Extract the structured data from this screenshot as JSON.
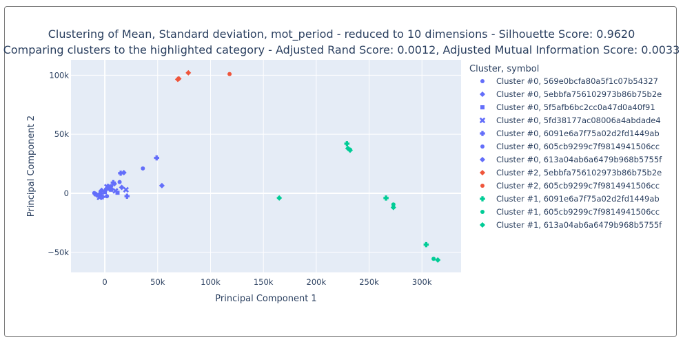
{
  "chart_data": {
    "type": "scatter",
    "title": "Clustering of Mean, Standard deviation, mot_period - reduced to 10 dimensions - Silhouette Score: 0.9620",
    "subtitle": "Comparing clusters to the highlighted category - Adjusted Rand Score: 0.0012, Adjusted Mutual Information Score: 0.0033",
    "xlabel": "Principal Component 1",
    "ylabel": "Principal Component 2",
    "xlim": [
      -32000,
      337000
    ],
    "ylim": [
      -67000,
      113000
    ],
    "x_ticks": [
      0,
      50000,
      100000,
      150000,
      200000,
      250000,
      300000
    ],
    "x_tick_labels": [
      "0",
      "50k",
      "100k",
      "150k",
      "200k",
      "250k",
      "300k"
    ],
    "y_ticks": [
      -50000,
      0,
      50000,
      100000
    ],
    "y_tick_labels": [
      "−50k",
      "0",
      "50k",
      "100k"
    ],
    "grid": true,
    "legend_title": "Cluster, symbol",
    "legend_position": "right",
    "series": [
      {
        "name": "Cluster #0, 569e0bcfa80a5f1c07b54327",
        "color": "#636efa",
        "symbol": "circle",
        "points": [
          [
            -10000,
            200
          ],
          [
            -7000,
            -1500
          ],
          [
            -4000,
            1500
          ],
          [
            2000,
            -2500
          ],
          [
            36000,
            21000
          ]
        ]
      },
      {
        "name": "Cluster #0, 5ebbfa756102973b86b75b2e",
        "color": "#636efa",
        "symbol": "diamond",
        "points": [
          [
            -8000,
            -1000
          ],
          [
            -3000,
            2500
          ],
          [
            4000,
            4000
          ],
          [
            18000,
            17500
          ],
          [
            54000,
            6500
          ]
        ]
      },
      {
        "name": "Cluster #0, 5f5afb6bc2cc0a47d0a40f91",
        "color": "#636efa",
        "symbol": "square",
        "points": [
          [
            -6000,
            -2000
          ],
          [
            0,
            1000
          ],
          [
            6000,
            3000
          ],
          [
            12000,
            500
          ]
        ]
      },
      {
        "name": "Cluster #0, 5fd38177ac08006a4abdade4",
        "color": "#636efa",
        "symbol": "x",
        "points": [
          [
            -5000,
            -3500
          ],
          [
            2000,
            5500
          ],
          [
            10000,
            2000
          ],
          [
            20000,
            3000
          ]
        ]
      },
      {
        "name": "Cluster #0, 6091e6a7f75a02d2fd1449ab",
        "color": "#636efa",
        "symbol": "cross",
        "points": [
          [
            -2000,
            -3000
          ],
          [
            8000,
            9000
          ],
          [
            15000,
            17000
          ],
          [
            21000,
            -2500
          ],
          [
            49000,
            30000
          ]
        ]
      },
      {
        "name": "Cluster #0, 605cb9299c7f9814941506cc",
        "color": "#636efa",
        "symbol": "circle",
        "points": [
          [
            -9000,
            -1000
          ],
          [
            1000,
            3000
          ],
          [
            6000,
            6000
          ],
          [
            14000,
            9500
          ]
        ]
      },
      {
        "name": "Cluster #0, 613a04ab6a6479b968b5755f",
        "color": "#636efa",
        "symbol": "diamond",
        "points": [
          [
            -4000,
            0
          ],
          [
            3000,
            6000
          ],
          [
            9000,
            8000
          ],
          [
            16000,
            5000
          ]
        ]
      },
      {
        "name": "Cluster #2, 5ebbfa756102973b86b75b2e",
        "color": "#ef553b",
        "symbol": "diamond",
        "points": [
          [
            70000,
            97000
          ],
          [
            69000,
            96500
          ],
          [
            79000,
            102000
          ]
        ]
      },
      {
        "name": "Cluster #2, 605cb9299c7f9814941506cc",
        "color": "#ef553b",
        "symbol": "circle",
        "points": [
          [
            118000,
            101000
          ]
        ]
      },
      {
        "name": "Cluster #1, 6091e6a7f75a02d2fd1449ab",
        "color": "#00cc96",
        "symbol": "cross",
        "points": [
          [
            229000,
            42000
          ],
          [
            266000,
            -4000
          ],
          [
            304000,
            -43500
          ]
        ]
      },
      {
        "name": "Cluster #1, 605cb9299c7f9814941506cc",
        "color": "#00cc96",
        "symbol": "circle",
        "points": [
          [
            232000,
            37000
          ],
          [
            273000,
            -9500
          ],
          [
            311000,
            -55500
          ]
        ]
      },
      {
        "name": "Cluster #1, 613a04ab6a6479b968b5755f",
        "color": "#00cc96",
        "symbol": "diamond",
        "points": [
          [
            165000,
            -4000
          ],
          [
            230000,
            38000
          ],
          [
            232000,
            36500
          ],
          [
            273000,
            -12000
          ],
          [
            315000,
            -56500
          ]
        ]
      }
    ]
  }
}
